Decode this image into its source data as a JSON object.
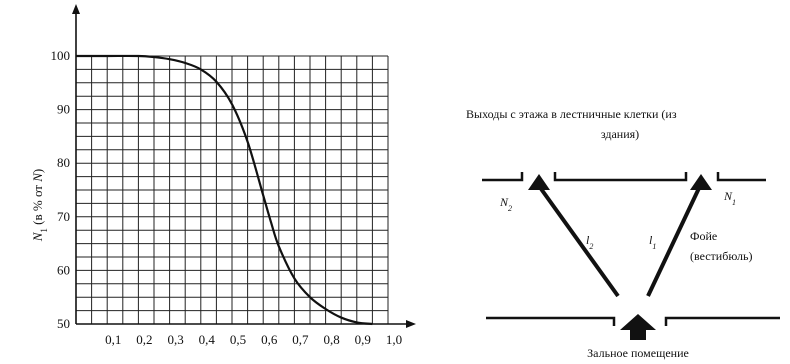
{
  "chart_data": {
    "type": "line",
    "title": "",
    "xlabel": "",
    "ylabel": "N1 (в % от N)",
    "ylabel_parts": {
      "symbol": "N",
      "subscript": "1",
      "rest": " (в % от ",
      "italic_n": "N",
      "close": ")"
    },
    "xlim": [
      0,
      1.0
    ],
    "ylim": [
      50,
      100
    ],
    "grid": true,
    "x_ticks": [
      "0,1",
      "0,2",
      "0,3",
      "0,4",
      "0,5",
      "0,6",
      "0,7",
      "0,8",
      "0,9",
      "1,0"
    ],
    "x_tick_values": [
      0.1,
      0.2,
      0.3,
      0.4,
      0.5,
      0.6,
      0.7,
      0.8,
      0.9,
      1.0
    ],
    "y_ticks": [
      "50",
      "60",
      "70",
      "80",
      "90",
      "100"
    ],
    "y_tick_values": [
      50,
      60,
      70,
      80,
      90,
      100
    ],
    "series": [
      {
        "x": [
          0,
          0.1,
          0.2,
          0.25,
          0.3,
          0.35,
          0.4,
          0.45,
          0.5,
          0.55,
          0.6,
          0.625,
          0.65,
          0.7,
          0.75,
          0.8,
          0.85,
          0.9,
          0.95
        ],
        "y": [
          100,
          100,
          100,
          99.8,
          99.4,
          98.7,
          97.5,
          95.2,
          91,
          84,
          74,
          69,
          64.5,
          58.5,
          55,
          52.8,
          51.2,
          50.3,
          50
        ]
      }
    ]
  },
  "diagram": {
    "caption_line1": "Выходы с этажа в лестничные клетки (из",
    "caption_line2": "здания)",
    "label_n2": "N",
    "label_n2_sub": "2",
    "label_n1": "N",
    "label_n1_sub": "1",
    "label_l2": "l",
    "label_l2_sub": "2",
    "label_l1": "l",
    "label_l1_sub": "1",
    "foyer_line1": "Фойе",
    "foyer_line2": "(вестибюль)",
    "hall_caption": "Зальное помещение"
  }
}
